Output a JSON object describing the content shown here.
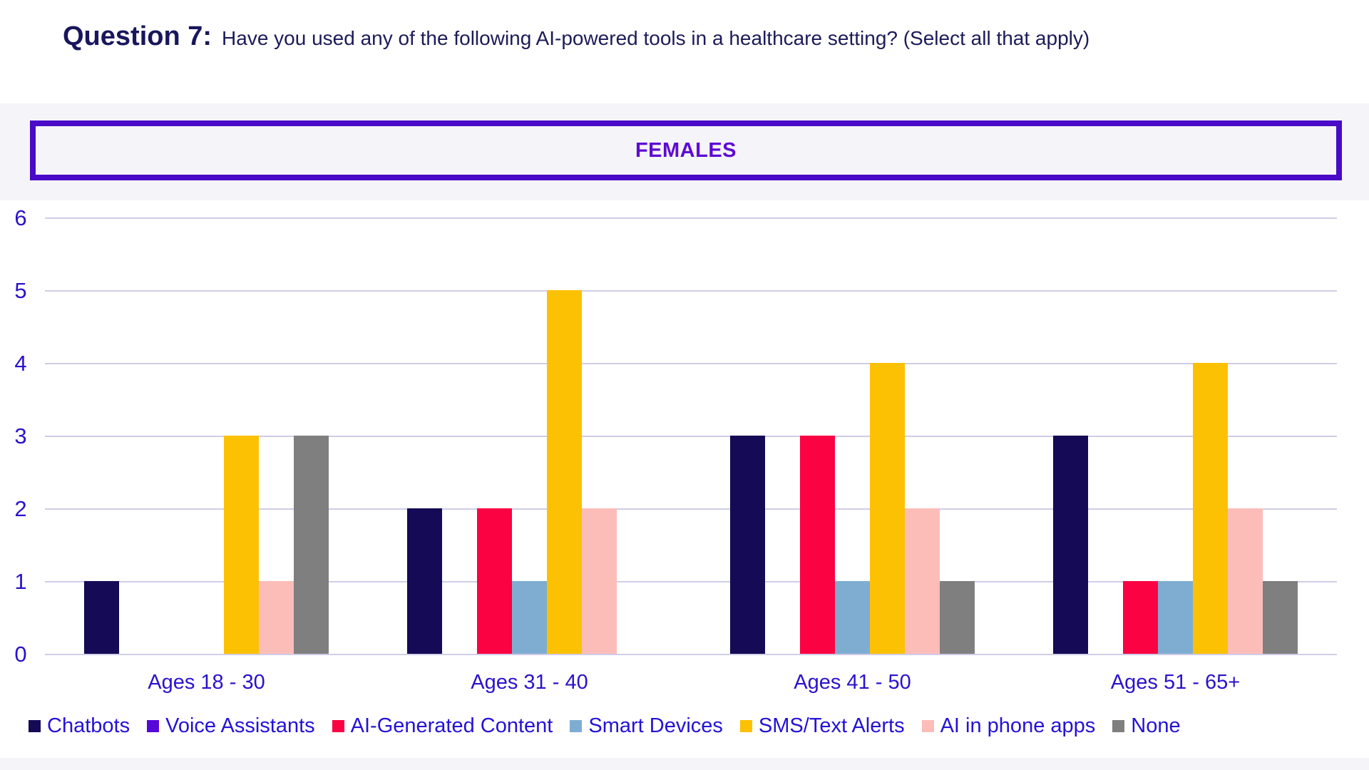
{
  "header": {
    "question_label": "Question 7:",
    "question_text": "Have you used any of the following AI-powered tools in a healthcare setting? (Select all that apply)"
  },
  "banner": {
    "label": "FEMALES",
    "border_color": "#4a0ac8",
    "text_color": "#5d0bd4",
    "band_background": "#f5f4f8"
  },
  "chart_data": {
    "type": "bar",
    "title": "FEMALES",
    "categories": [
      "Ages 18 - 30",
      "Ages 31 - 40",
      "Ages 41 - 50",
      "Ages 51 - 65+"
    ],
    "series": [
      {
        "name": "Chatbots",
        "color": "#140a56",
        "values": [
          1,
          2,
          3,
          3
        ]
      },
      {
        "name": "Voice Assistants",
        "color": "#5708d8",
        "values": [
          0,
          0,
          0,
          0
        ]
      },
      {
        "name": "AI-Generated Content",
        "color": "#fb0243",
        "values": [
          0,
          2,
          3,
          1
        ]
      },
      {
        "name": "Smart Devices",
        "color": "#7fadd2",
        "values": [
          0,
          1,
          1,
          1
        ]
      },
      {
        "name": "SMS/Text Alerts",
        "color": "#fdc103",
        "values": [
          3,
          5,
          4,
          4
        ]
      },
      {
        "name": "AI in phone apps",
        "color": "#fcbdb9",
        "values": [
          1,
          2,
          2,
          2
        ]
      },
      {
        "name": "None",
        "color": "#7f7f7f",
        "values": [
          3,
          0,
          1,
          1
        ]
      }
    ],
    "ylim": [
      0,
      6
    ],
    "yticks": [
      0,
      1,
      2,
      3,
      4,
      5,
      6
    ],
    "grid": true,
    "legend_position": "bottom",
    "axis_text_color": "#2a12cc",
    "gridline_color": "#cfcde8"
  }
}
